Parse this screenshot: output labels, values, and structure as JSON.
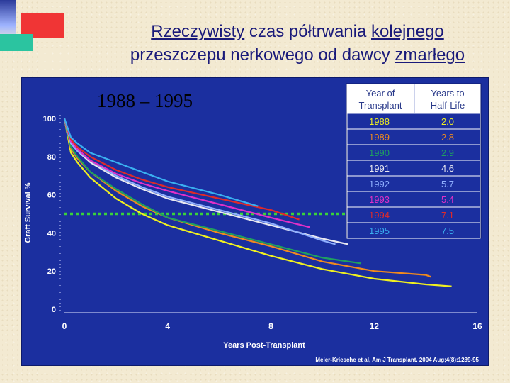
{
  "title": {
    "line1_plain1": "Rzeczywisty",
    "line1_plain2": " czas półtrwania ",
    "line1_plain3": "kolejnego",
    "line2_plain1": "przeszczepu nerkowego od dawcy ",
    "line2_plain2": "zmarłego"
  },
  "colors": {
    "panel": "#1b2f9f",
    "threshold": "#39d23a"
  },
  "chart_data": {
    "type": "line",
    "title": "1988 – 1995",
    "xlabel": "Years Post-Transplant",
    "ylabel": "Graft Survival %",
    "xlim": [
      0,
      16
    ],
    "ylim": [
      0,
      100
    ],
    "x_ticks": [
      0,
      4,
      8,
      12,
      16
    ],
    "y_ticks": [
      0,
      20,
      40,
      60,
      80,
      100
    ],
    "threshold_line": 50,
    "legend_headers": [
      "Year of Transplant",
      "Years to Half-Life"
    ],
    "legend_position": "top-right",
    "source": "Meier-Kriesche et al, Am J Transplant. 2004 Aug;4(8):1289-95",
    "series": [
      {
        "name": "1988",
        "half_life": "2.0",
        "color": "#f0f020",
        "points": [
          [
            0,
            100
          ],
          [
            0.25,
            82
          ],
          [
            0.5,
            77
          ],
          [
            1,
            69
          ],
          [
            2,
            58
          ],
          [
            3,
            50
          ],
          [
            4,
            44
          ],
          [
            6,
            36
          ],
          [
            8,
            28
          ],
          [
            10,
            21
          ],
          [
            12,
            16
          ],
          [
            14,
            13
          ],
          [
            15,
            12
          ]
        ]
      },
      {
        "name": "1989",
        "half_life": "2.8",
        "color": "#f08a1e",
        "points": [
          [
            0,
            100
          ],
          [
            0.25,
            84
          ],
          [
            0.5,
            79
          ],
          [
            1,
            72
          ],
          [
            2,
            62
          ],
          [
            3,
            54
          ],
          [
            4,
            48
          ],
          [
            6,
            40
          ],
          [
            8,
            33
          ],
          [
            10,
            25
          ],
          [
            12,
            20
          ],
          [
            14,
            18
          ],
          [
            14.2,
            17
          ]
        ]
      },
      {
        "name": "1990",
        "half_life": "2.9",
        "color": "#1fa060",
        "points": [
          [
            0,
            100
          ],
          [
            0.25,
            85
          ],
          [
            0.5,
            80
          ],
          [
            1,
            72
          ],
          [
            2,
            63
          ],
          [
            3,
            55
          ],
          [
            4,
            48
          ],
          [
            6,
            41
          ],
          [
            8,
            34
          ],
          [
            10,
            27
          ],
          [
            11.5,
            24
          ]
        ]
      },
      {
        "name": "1991",
        "half_life": "4.6",
        "color": "#e8e8f0",
        "points": [
          [
            0,
            100
          ],
          [
            0.25,
            87
          ],
          [
            0.5,
            83
          ],
          [
            1,
            77
          ],
          [
            2,
            69
          ],
          [
            3,
            63
          ],
          [
            4,
            58
          ],
          [
            6,
            51
          ],
          [
            8,
            44
          ],
          [
            10,
            37
          ],
          [
            11,
            34
          ]
        ]
      },
      {
        "name": "1992",
        "half_life": "5.7",
        "color": "#90b0ff",
        "points": [
          [
            0,
            100
          ],
          [
            0.25,
            87
          ],
          [
            0.5,
            83
          ],
          [
            1,
            78
          ],
          [
            2,
            70
          ],
          [
            3,
            64
          ],
          [
            4,
            59
          ],
          [
            6,
            52
          ],
          [
            8,
            45
          ],
          [
            10,
            36
          ],
          [
            10.5,
            34
          ]
        ]
      },
      {
        "name": "1993",
        "half_life": "5.4",
        "color": "#e030c8",
        "points": [
          [
            0,
            100
          ],
          [
            0.25,
            88
          ],
          [
            0.5,
            84
          ],
          [
            1,
            78
          ],
          [
            2,
            71
          ],
          [
            3,
            66
          ],
          [
            4,
            62
          ],
          [
            6,
            55
          ],
          [
            8,
            48
          ],
          [
            9.5,
            43
          ]
        ]
      },
      {
        "name": "1994",
        "half_life": "7.1",
        "color": "#e02a2a",
        "points": [
          [
            0,
            100
          ],
          [
            0.25,
            89
          ],
          [
            0.5,
            85
          ],
          [
            1,
            80
          ],
          [
            2,
            73
          ],
          [
            3,
            68
          ],
          [
            4,
            64
          ],
          [
            6,
            58
          ],
          [
            8,
            52
          ],
          [
            9.1,
            47
          ]
        ]
      },
      {
        "name": "1995",
        "half_life": "7.5",
        "color": "#3ab0f0",
        "points": [
          [
            0,
            100
          ],
          [
            0.25,
            90
          ],
          [
            0.5,
            87
          ],
          [
            1,
            82
          ],
          [
            2,
            77
          ],
          [
            3,
            72
          ],
          [
            4,
            67
          ],
          [
            6,
            60
          ],
          [
            7.5,
            54
          ]
        ]
      }
    ]
  }
}
